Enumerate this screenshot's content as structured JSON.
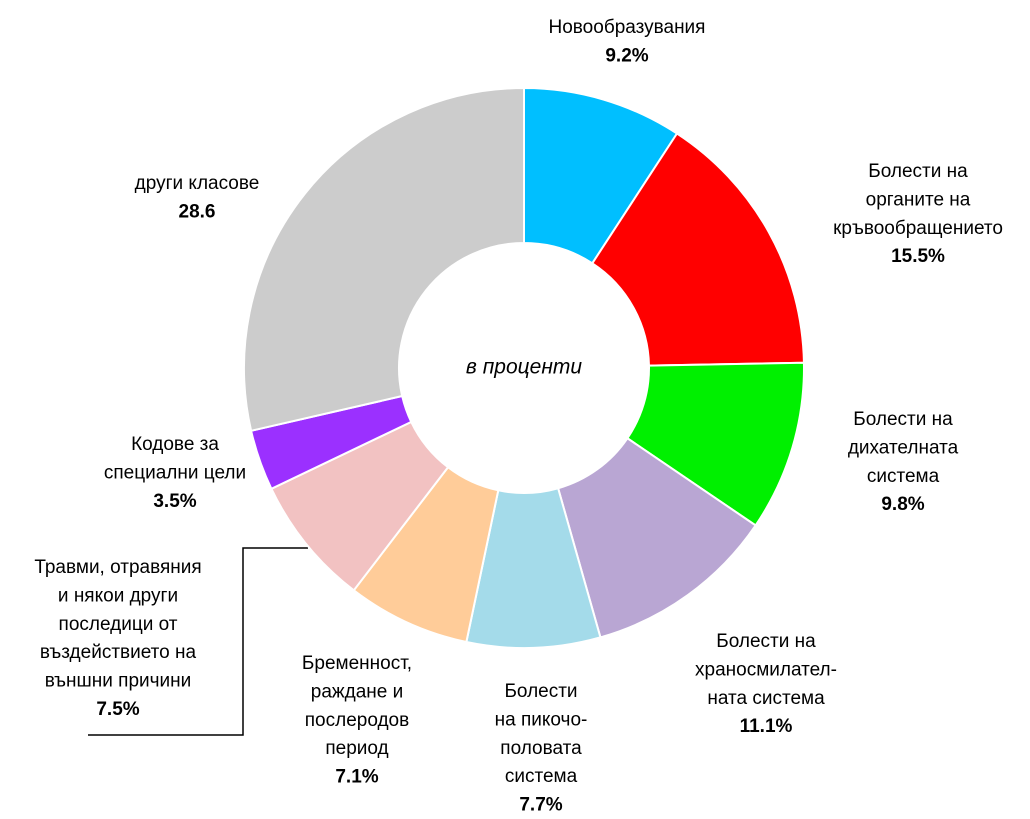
{
  "chart_data": {
    "type": "donut",
    "center_label": "в проценти",
    "categories": [
      [
        "Новообразувания"
      ],
      [
        "Болести на",
        "органите на",
        "кръвообращението"
      ],
      [
        "Болести на",
        "дихателната",
        "система"
      ],
      [
        "Болести на",
        "храносмилател-",
        "ната система"
      ],
      [
        "Болести",
        "на пикочо-",
        "половата",
        "система"
      ],
      [
        "Бременност,",
        "раждане и",
        "послеродов",
        "период"
      ],
      [
        "Травми, отравяния",
        "и някои други",
        "последици от",
        "въздействието на",
        "външни причини"
      ],
      [
        "Кодове за",
        "специални цели"
      ],
      [
        "други класове"
      ]
    ],
    "values": [
      9.2,
      15.5,
      9.8,
      11.1,
      7.7,
      7.1,
      7.5,
      3.5,
      28.6
    ],
    "value_labels": [
      "9.2%",
      "15.5%",
      "9.8%",
      "11.1%",
      "7.7%",
      "7.1%",
      "7.5%",
      "3.5%",
      "28.6"
    ],
    "colors": [
      "#00bfff",
      "#ff0000",
      "#00f000",
      "#b9a6d3",
      "#a4dbea",
      "#ffcc99",
      "#f2c2c2",
      "#9b30ff",
      "#cccccc"
    ]
  }
}
